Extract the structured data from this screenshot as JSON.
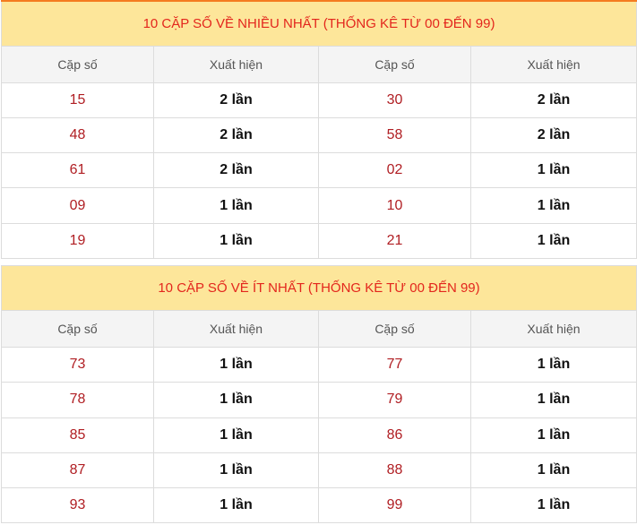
{
  "tables": [
    {
      "title": "10 CẶP SỐ VỀ NHIỀU NHẤT (THỐNG KÊ TỪ 00 ĐẾN 99)",
      "headers": [
        "Cặp số",
        "Xuất hiện",
        "Cặp số",
        "Xuất hiện"
      ],
      "rows": [
        [
          "15",
          "2 lần",
          "30",
          "2 lần"
        ],
        [
          "48",
          "2 lần",
          "58",
          "2 lần"
        ],
        [
          "61",
          "2 lần",
          "02",
          "1 lần"
        ],
        [
          "09",
          "1 lần",
          "10",
          "1 lần"
        ],
        [
          "19",
          "1 lần",
          "21",
          "1 lần"
        ]
      ]
    },
    {
      "title": "10 CẶP SỐ VỀ ÍT NHẤT (THỐNG KÊ TỪ 00 ĐẾN 99)",
      "headers": [
        "Cặp số",
        "Xuất hiện",
        "Cặp số",
        "Xuất hiện"
      ],
      "rows": [
        [
          "73",
          "1 lần",
          "77",
          "1 lần"
        ],
        [
          "78",
          "1 lần",
          "79",
          "1 lần"
        ],
        [
          "85",
          "1 lần",
          "86",
          "1 lần"
        ],
        [
          "87",
          "1 lần",
          "88",
          "1 lần"
        ],
        [
          "93",
          "1 lần",
          "99",
          "1 lần"
        ]
      ]
    }
  ],
  "colors": {
    "title_bg": "#fde69a",
    "title_text": "#e3261d",
    "number": "#b01e23",
    "accent_border": "#f47b20"
  }
}
